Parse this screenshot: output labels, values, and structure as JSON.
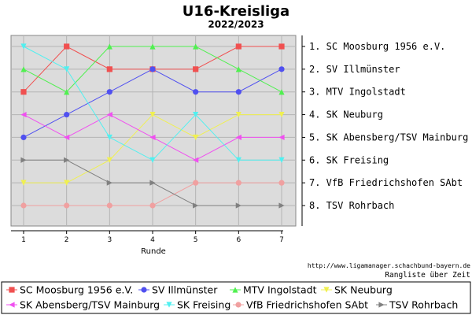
{
  "chart_data": {
    "type": "line",
    "title": "U16-Kreisliga",
    "subtitle": "2022/2023",
    "xlabel": "Runde",
    "x": [
      1,
      2,
      3,
      4,
      5,
      6,
      7
    ],
    "ylim": [
      8,
      1
    ],
    "y_inverted": true,
    "grid": true,
    "legend_position": "bottom",
    "ranking": [
      "1. SC Moosburg 1956 e.V.",
      "2. SV Illmünster",
      "3. MTV Ingolstadt",
      "4. SK Neuburg",
      "5. SK Abensberg/TSV Mainburg",
      "6. SK Freising",
      "7. VfB Friedrichshofen SAbt",
      "8. TSV Rohrbach"
    ],
    "series": [
      {
        "name": "SC Moosburg 1956 e.V.",
        "color": "#f05050",
        "marker": "square",
        "values": [
          3,
          1,
          2,
          2,
          2,
          1,
          1
        ]
      },
      {
        "name": "SV Illmünster",
        "color": "#5050f0",
        "marker": "circle",
        "values": [
          5,
          4,
          3,
          2,
          3,
          3,
          2
        ]
      },
      {
        "name": "MTV Ingolstadt",
        "color": "#50f050",
        "marker": "triangle-up",
        "values": [
          2,
          3,
          1,
          1,
          1,
          2,
          3
        ]
      },
      {
        "name": "SK Neuburg",
        "color": "#f0f050",
        "marker": "triangle-down",
        "values": [
          7,
          7,
          6,
          4,
          5,
          4,
          4
        ]
      },
      {
        "name": "SK Abensberg/TSV Mainburg",
        "color": "#f050f0",
        "marker": "triangle-left",
        "values": [
          4,
          5,
          4,
          5,
          6,
          5,
          5
        ]
      },
      {
        "name": "SK Freising",
        "color": "#50f0f0",
        "marker": "triangle-down",
        "values": [
          1,
          2,
          5,
          6,
          4,
          6,
          6
        ]
      },
      {
        "name": "VfB Friedrichshofen SAbt",
        "color": "#f0a0a0",
        "marker": "circle",
        "values": [
          8,
          8,
          8,
          8,
          7,
          7,
          7
        ]
      },
      {
        "name": "TSV Rohrbach",
        "color": "#808080",
        "marker": "triangle-right",
        "values": [
          6,
          6,
          7,
          7,
          8,
          8,
          8
        ]
      }
    ]
  },
  "footer": {
    "url": "http://www.ligamanager.schachbund-bayern.de",
    "note": "Rangliste über Zeit"
  },
  "colors": {
    "plot_background": "#dcdcdc",
    "grid": "#b4b4b4"
  }
}
